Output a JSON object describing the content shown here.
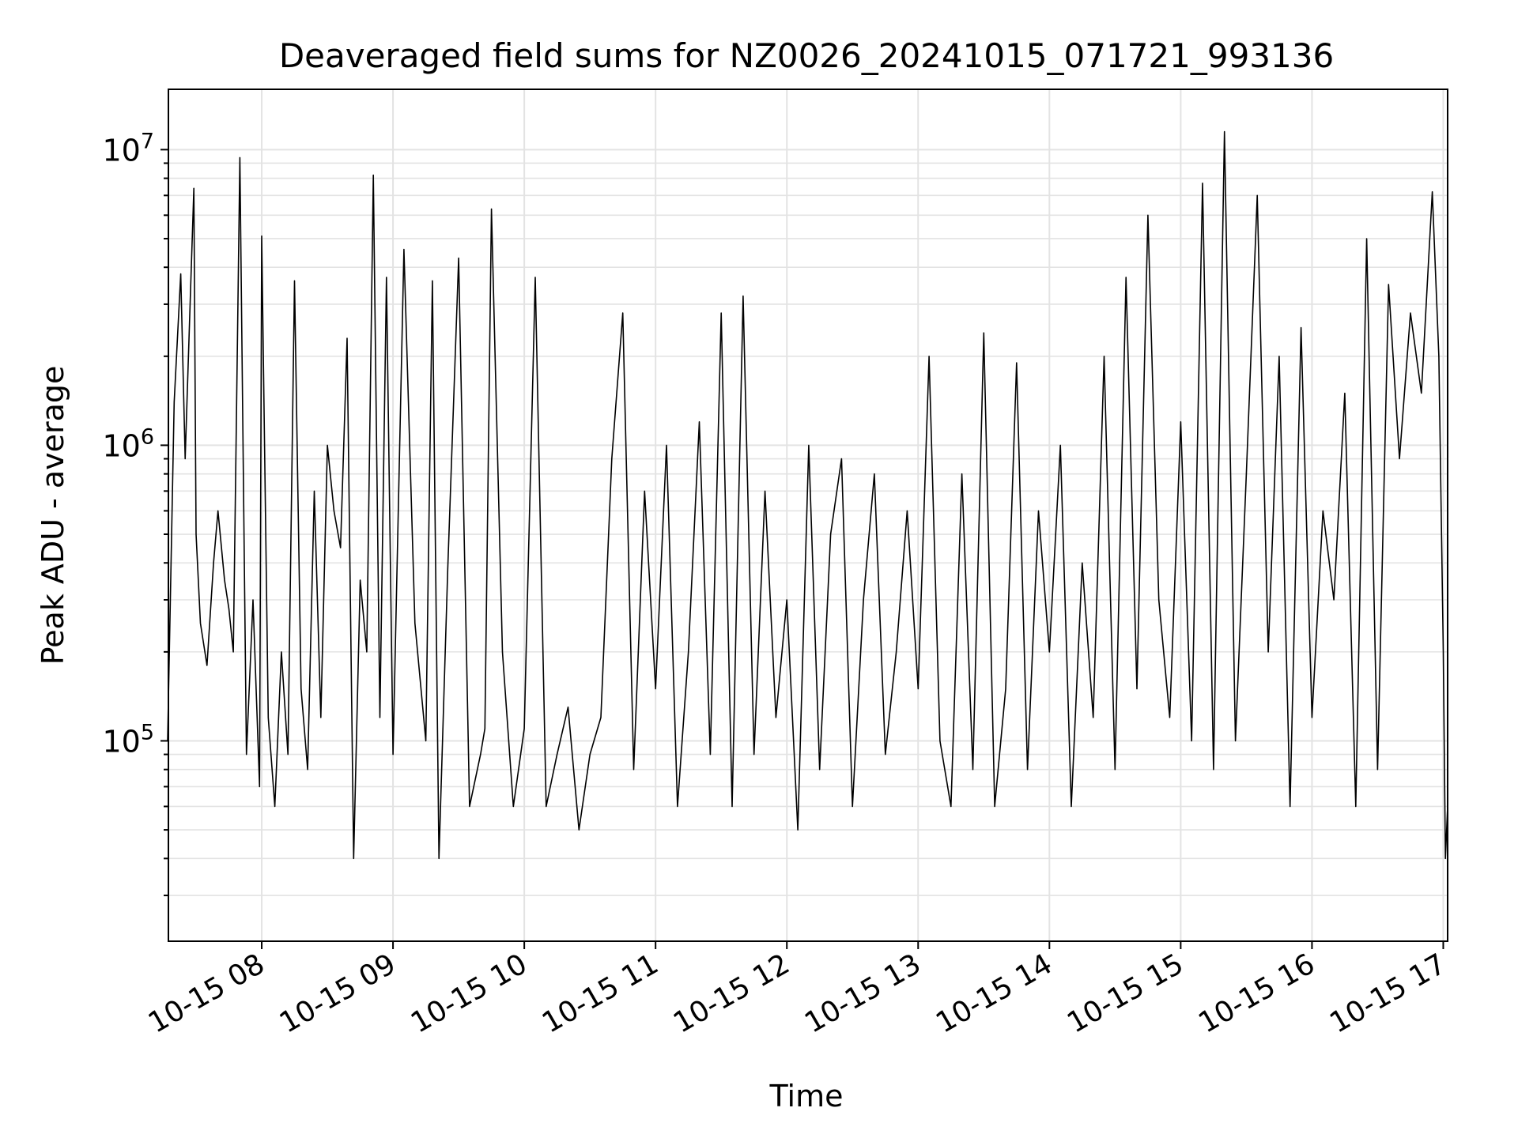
{
  "chart_data": {
    "type": "line",
    "title": "Deaveraged field sums for NZ0026_20241015_071721_993136",
    "xlabel": "Time",
    "ylabel": "Peak ADU - average",
    "yscale": "log",
    "xlim": [
      "2024-10-15T07:17:21",
      "2024-10-15T17:02:00"
    ],
    "ylim": [
      21000,
      16000000
    ],
    "grid": true,
    "legend": "none",
    "line_color": "#000000",
    "x_ticks": [
      {
        "value": "2024-10-15T08:00",
        "label": "10-15 08"
      },
      {
        "value": "2024-10-15T09:00",
        "label": "10-15 09"
      },
      {
        "value": "2024-10-15T10:00",
        "label": "10-15 10"
      },
      {
        "value": "2024-10-15T11:00",
        "label": "10-15 11"
      },
      {
        "value": "2024-10-15T12:00",
        "label": "10-15 12"
      },
      {
        "value": "2024-10-15T13:00",
        "label": "10-15 13"
      },
      {
        "value": "2024-10-15T14:00",
        "label": "10-15 14"
      },
      {
        "value": "2024-10-15T15:00",
        "label": "10-15 15"
      },
      {
        "value": "2024-10-15T16:00",
        "label": "10-15 16"
      },
      {
        "value": "2024-10-15T17:00",
        "label": "10-15 17"
      }
    ],
    "y_ticks": [
      {
        "value": 100000,
        "base": "10",
        "exp": "5"
      },
      {
        "value": 1000000,
        "base": "10",
        "exp": "6"
      },
      {
        "value": 10000000,
        "base": "10",
        "exp": "7"
      }
    ],
    "series": [
      {
        "x": [
          "2024-10-15T07:17",
          "2024-10-15T07:20",
          "2024-10-15T07:23",
          "2024-10-15T07:25",
          "2024-10-15T07:27",
          "2024-10-15T07:29",
          "2024-10-15T07:30",
          "2024-10-15T07:32",
          "2024-10-15T07:35",
          "2024-10-15T07:38",
          "2024-10-15T07:40",
          "2024-10-15T07:43",
          "2024-10-15T07:45",
          "2024-10-15T07:47",
          "2024-10-15T07:50",
          "2024-10-15T07:53",
          "2024-10-15T07:56",
          "2024-10-15T07:59",
          "2024-10-15T08:00",
          "2024-10-15T08:03",
          "2024-10-15T08:06",
          "2024-10-15T08:09",
          "2024-10-15T08:12",
          "2024-10-15T08:15",
          "2024-10-15T08:18",
          "2024-10-15T08:21",
          "2024-10-15T08:24",
          "2024-10-15T08:27",
          "2024-10-15T08:30",
          "2024-10-15T08:33",
          "2024-10-15T08:36",
          "2024-10-15T08:39",
          "2024-10-15T08:42",
          "2024-10-15T08:45",
          "2024-10-15T08:48",
          "2024-10-15T08:51",
          "2024-10-15T08:54",
          "2024-10-15T08:57",
          "2024-10-15T09:00",
          "2024-10-15T09:05",
          "2024-10-15T09:10",
          "2024-10-15T09:15",
          "2024-10-15T09:18",
          "2024-10-15T09:21",
          "2024-10-15T09:25",
          "2024-10-15T09:30",
          "2024-10-15T09:35",
          "2024-10-15T09:40",
          "2024-10-15T09:42",
          "2024-10-15T09:45",
          "2024-10-15T09:50",
          "2024-10-15T09:55",
          "2024-10-15T10:00",
          "2024-10-15T10:05",
          "2024-10-15T10:10",
          "2024-10-15T10:15",
          "2024-10-15T10:20",
          "2024-10-15T10:25",
          "2024-10-15T10:30",
          "2024-10-15T10:35",
          "2024-10-15T10:40",
          "2024-10-15T10:45",
          "2024-10-15T10:50",
          "2024-10-15T10:55",
          "2024-10-15T11:00",
          "2024-10-15T11:05",
          "2024-10-15T11:10",
          "2024-10-15T11:15",
          "2024-10-15T11:20",
          "2024-10-15T11:25",
          "2024-10-15T11:30",
          "2024-10-15T11:35",
          "2024-10-15T11:40",
          "2024-10-15T11:45",
          "2024-10-15T11:50",
          "2024-10-15T11:55",
          "2024-10-15T12:00",
          "2024-10-15T12:05",
          "2024-10-15T12:10",
          "2024-10-15T12:15",
          "2024-10-15T12:20",
          "2024-10-15T12:25",
          "2024-10-15T12:30",
          "2024-10-15T12:35",
          "2024-10-15T12:40",
          "2024-10-15T12:45",
          "2024-10-15T12:50",
          "2024-10-15T12:55",
          "2024-10-15T13:00",
          "2024-10-15T13:05",
          "2024-10-15T13:10",
          "2024-10-15T13:15",
          "2024-10-15T13:20",
          "2024-10-15T13:25",
          "2024-10-15T13:30",
          "2024-10-15T13:35",
          "2024-10-15T13:40",
          "2024-10-15T13:45",
          "2024-10-15T13:50",
          "2024-10-15T13:55",
          "2024-10-15T14:00",
          "2024-10-15T14:05",
          "2024-10-15T14:10",
          "2024-10-15T14:15",
          "2024-10-15T14:20",
          "2024-10-15T14:25",
          "2024-10-15T14:30",
          "2024-10-15T14:35",
          "2024-10-15T14:40",
          "2024-10-15T14:45",
          "2024-10-15T14:50",
          "2024-10-15T14:55",
          "2024-10-15T15:00",
          "2024-10-15T15:05",
          "2024-10-15T15:10",
          "2024-10-15T15:15",
          "2024-10-15T15:20",
          "2024-10-15T15:25",
          "2024-10-15T15:30",
          "2024-10-15T15:35",
          "2024-10-15T15:40",
          "2024-10-15T15:45",
          "2024-10-15T15:50",
          "2024-10-15T15:55",
          "2024-10-15T16:00",
          "2024-10-15T16:05",
          "2024-10-15T16:10",
          "2024-10-15T16:15",
          "2024-10-15T16:20",
          "2024-10-15T16:25",
          "2024-10-15T16:30",
          "2024-10-15T16:35",
          "2024-10-15T16:40",
          "2024-10-15T16:45",
          "2024-10-15T16:50",
          "2024-10-15T16:55",
          "2024-10-15T16:58",
          "2024-10-15T17:00",
          "2024-10-15T17:01",
          "2024-10-15T17:02"
        ],
        "y": [
          100000,
          1400000,
          3800000,
          900000,
          2600000,
          7400000,
          500000,
          250000,
          180000,
          400000,
          600000,
          350000,
          280000,
          200000,
          9400000,
          90000,
          300000,
          70000,
          5100000,
          120000,
          60000,
          200000,
          90000,
          3600000,
          150000,
          80000,
          700000,
          120000,
          1000000,
          600000,
          450000,
          2300000,
          40000,
          350000,
          200000,
          8200000,
          120000,
          3700000,
          90000,
          4600000,
          250000,
          100000,
          3600000,
          40000,
          380000,
          4300000,
          60000,
          90000,
          110000,
          6300000,
          200000,
          60000,
          110000,
          3700000,
          60000,
          90000,
          130000,
          50000,
          90000,
          120000,
          900000,
          2800000,
          80000,
          700000,
          150000,
          1000000,
          60000,
          200000,
          1200000,
          90000,
          2800000,
          60000,
          3200000,
          90000,
          700000,
          120000,
          300000,
          50000,
          1000000,
          80000,
          500000,
          900000,
          60000,
          300000,
          800000,
          90000,
          200000,
          600000,
          150000,
          2000000,
          100000,
          60000,
          800000,
          80000,
          2400000,
          60000,
          150000,
          1900000,
          80000,
          600000,
          200000,
          1000000,
          60000,
          400000,
          120000,
          2000000,
          80000,
          3700000,
          150000,
          6000000,
          300000,
          120000,
          1200000,
          100000,
          7700000,
          80000,
          11500000,
          100000,
          800000,
          7000000,
          200000,
          2000000,
          60000,
          2500000,
          120000,
          600000,
          300000,
          1500000,
          60000,
          5000000,
          80000,
          3500000,
          900000,
          2800000,
          1500000,
          7200000,
          2000000,
          200000,
          40000,
          60000
        ]
      }
    ]
  }
}
